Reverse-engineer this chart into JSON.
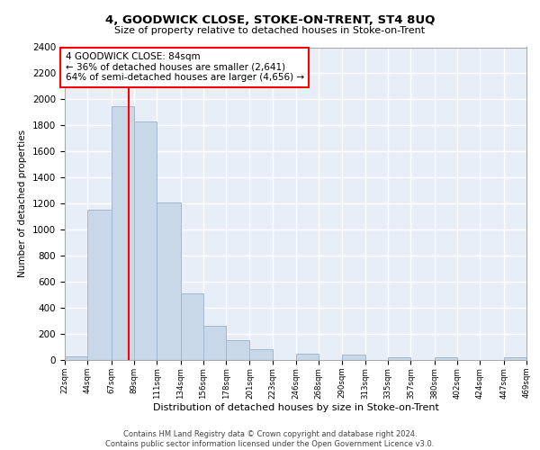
{
  "title": "4, GOODWICK CLOSE, STOKE-ON-TRENT, ST4 8UQ",
  "subtitle": "Size of property relative to detached houses in Stoke-on-Trent",
  "xlabel": "Distribution of detached houses by size in Stoke-on-Trent",
  "ylabel": "Number of detached properties",
  "bar_color": "#c8d8e8",
  "bar_edge_color": "#a0b8d0",
  "bg_color": "#e8eef8",
  "grid_color": "white",
  "vline_x": 84,
  "vline_color": "red",
  "annotation_text": "4 GOODWICK CLOSE: 84sqm\n← 36% of detached houses are smaller (2,641)\n64% of semi-detached houses are larger (4,656) →",
  "annotation_box_color": "white",
  "annotation_box_edge": "red",
  "bin_edges": [
    22,
    44,
    67,
    89,
    111,
    134,
    156,
    178,
    201,
    223,
    246,
    268,
    290,
    313,
    335,
    357,
    380,
    402,
    424,
    447,
    469
  ],
  "bar_heights": [
    30,
    1150,
    1950,
    1830,
    1210,
    510,
    265,
    150,
    82,
    0,
    45,
    0,
    38,
    0,
    22,
    0,
    18,
    0,
    0,
    20
  ],
  "ylim": [
    0,
    2400
  ],
  "yticks": [
    0,
    200,
    400,
    600,
    800,
    1000,
    1200,
    1400,
    1600,
    1800,
    2000,
    2200,
    2400
  ],
  "footer_text": "Contains HM Land Registry data © Crown copyright and database right 2024.\nContains public sector information licensed under the Open Government Licence v3.0.",
  "tick_labels": [
    "22sqm",
    "44sqm",
    "67sqm",
    "89sqm",
    "111sqm",
    "134sqm",
    "156sqm",
    "178sqm",
    "201sqm",
    "223sqm",
    "246sqm",
    "268sqm",
    "290sqm",
    "313sqm",
    "335sqm",
    "357sqm",
    "380sqm",
    "402sqm",
    "424sqm",
    "447sqm",
    "469sqm"
  ]
}
